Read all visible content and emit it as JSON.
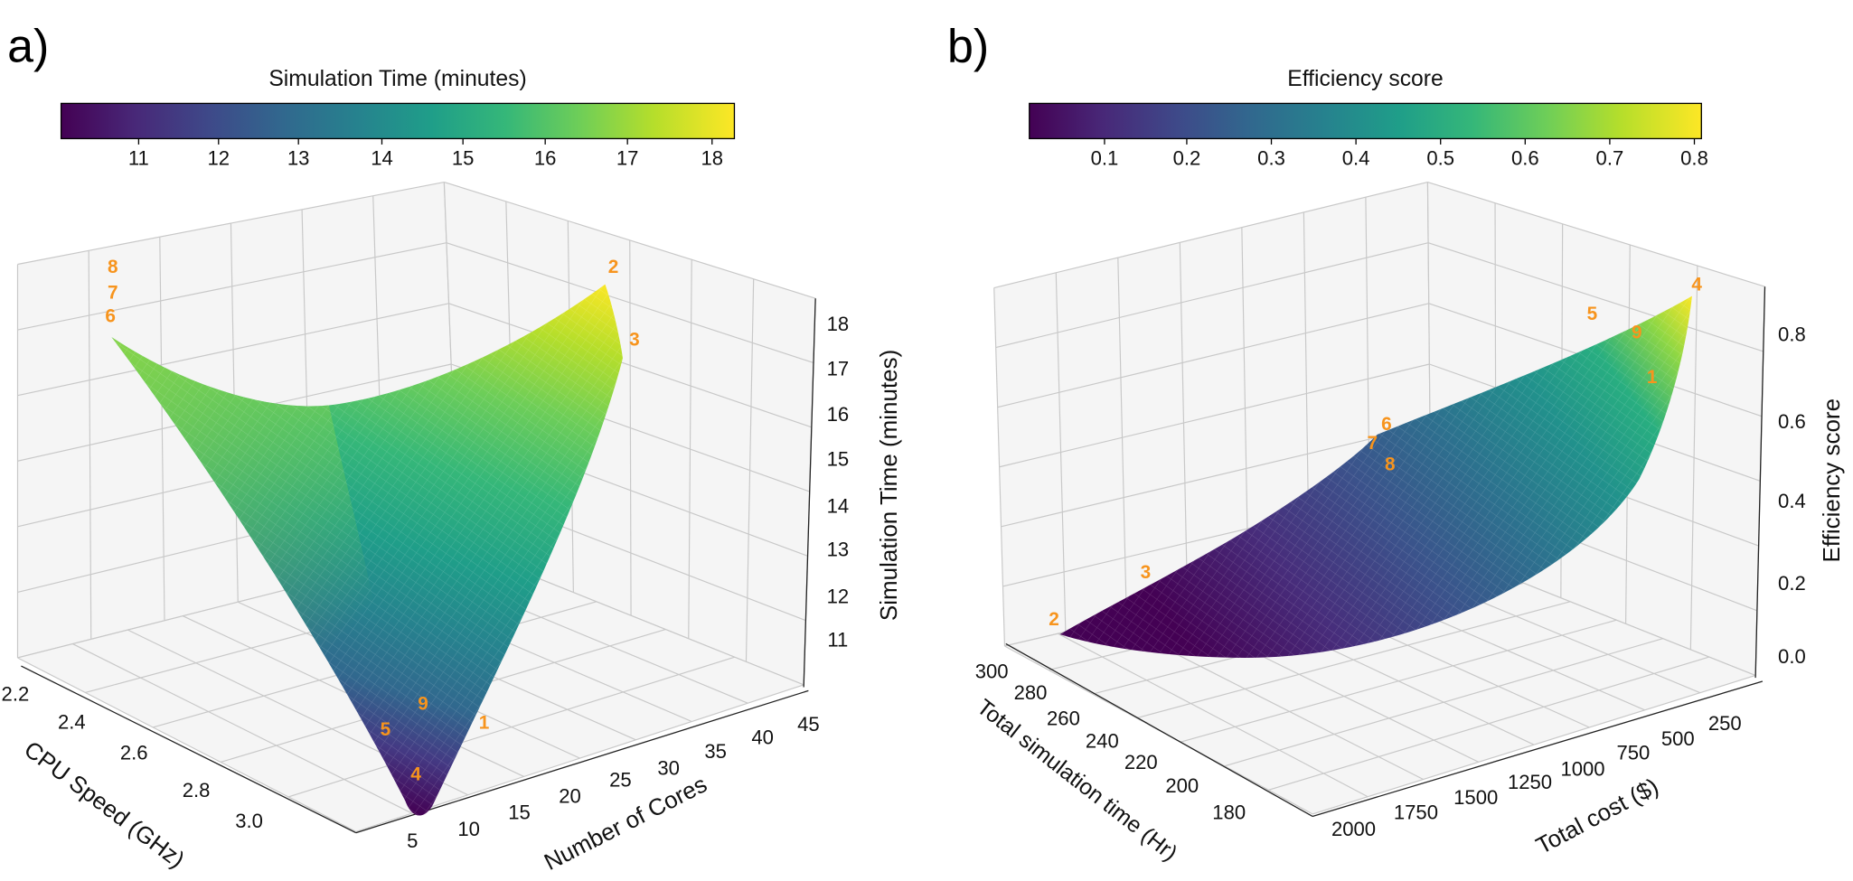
{
  "chart_data": [
    {
      "type": "surface",
      "panel_label": "a)",
      "colormap": "viridis",
      "colorbar": {
        "title": "Simulation Time (minutes)",
        "ticks": [
          "11",
          "12",
          "13",
          "14",
          "15",
          "16",
          "17",
          "18"
        ],
        "range": [
          10.05,
          18.25
        ],
        "placement": "top"
      },
      "xlabel": "CPU Speed (GHz)",
      "xticks": [
        "2.2",
        "2.4",
        "2.6",
        "2.8",
        "3.0"
      ],
      "ylabel": "Number of Cores",
      "yticks": [
        "5",
        "10",
        "15",
        "20",
        "25",
        "30",
        "35",
        "40",
        "45"
      ],
      "zlabel": "Simulation Time (minutes)",
      "zticks": [
        "11",
        "12",
        "13",
        "14",
        "15",
        "16",
        "17",
        "18"
      ],
      "zlim": [
        10.05,
        18.25
      ],
      "grid": true,
      "annotations": [
        "8",
        "7",
        "6",
        "2",
        "3",
        "9",
        "5",
        "1",
        "4"
      ],
      "annotation_color": "#f7941d"
    },
    {
      "type": "surface",
      "panel_label": "b)",
      "colormap": "viridis",
      "colorbar": {
        "title": "Efficiency score",
        "ticks": [
          "0.1",
          "0.2",
          "0.3",
          "0.4",
          "0.5",
          "0.6",
          "0.7",
          "0.8"
        ],
        "range": [
          0.01,
          0.82
        ],
        "placement": "top"
      },
      "xlabel": "Total simulation time (Hr)",
      "xticks": [
        "300",
        "280",
        "260",
        "240",
        "220",
        "200",
        "180"
      ],
      "ylabel": "Total cost ($)",
      "yticks": [
        "2000",
        "1750",
        "1500",
        "1250",
        "1000",
        "750",
        "500",
        "250"
      ],
      "zlabel": "Efficiency score",
      "zticks": [
        "0.0",
        "0.2",
        "0.4",
        "0.6",
        "0.8"
      ],
      "zlim": [
        0.0,
        0.9
      ],
      "grid": true,
      "annotations": [
        "2",
        "3",
        "6",
        "7",
        "8",
        "5",
        "9",
        "4",
        "1"
      ],
      "annotation_color": "#f7941d"
    }
  ]
}
